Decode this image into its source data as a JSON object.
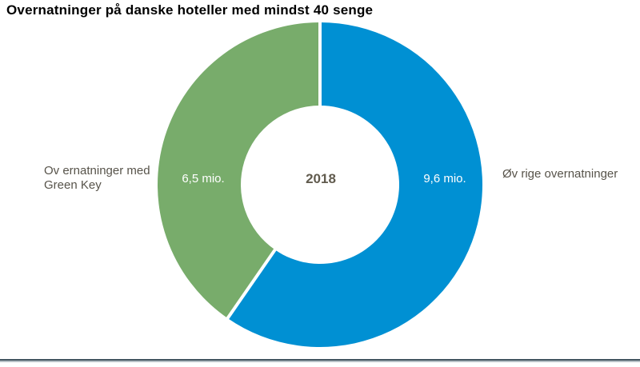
{
  "chart_data": {
    "type": "pie",
    "subtype": "donut",
    "title": "Overnatninger på danske hoteller med mindst 40 senge",
    "center_label": "2018",
    "unit": "mio.",
    "start_angle_deg": -90,
    "direction": "clockwise",
    "hole_ratio": 0.49,
    "legend_position": "sides",
    "divider_color": "#ffffff",
    "segments": [
      {
        "name": "ovrige-overnatninger",
        "label_lines": [
          "Øv rige overnatninger"
        ],
        "value": 9.6,
        "value_display": "9,6 mio.",
        "color": "#0090d3",
        "side": "right"
      },
      {
        "name": "overnatninger-med-green-key",
        "label_lines": [
          "Ov ernatninger med",
          "Green Key"
        ],
        "value": 6.5,
        "value_display": "6,5 mio.",
        "color": "#78ac6b",
        "side": "left"
      }
    ]
  },
  "footer": {
    "rule_color_dark": "#42545f",
    "rule_color_light": "#b6c0c5"
  }
}
